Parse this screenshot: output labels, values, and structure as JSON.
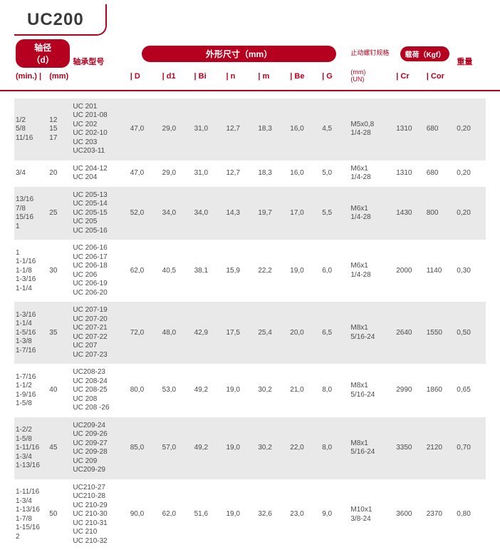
{
  "title": "UC200",
  "colors": {
    "accent": "#b5001f",
    "text": "#4a4a4a",
    "stripe": "#e9e9e9"
  },
  "header": {
    "shaft_pill": "轴径（d）",
    "dim_pill": "外形尺寸（mm）",
    "load_pill": "载荷（Kgf）",
    "bearing_no": "轴承型号",
    "screw_spec": "止动螺钉规格",
    "min": "(min.)",
    "mm": "(mm)",
    "mm2": "(mm)",
    "un": "(UN)",
    "D": "D",
    "d1": "d1",
    "Bi": "Bi",
    "n": "n",
    "m": "m",
    "Be": "Be",
    "G": "G",
    "Cr": "Cr",
    "Cor": "Cor",
    "weight": "重量"
  },
  "cols": {
    "w": [
      40,
      28,
      68,
      38,
      38,
      38,
      38,
      38,
      38,
      34,
      54,
      36,
      36,
      36
    ]
  },
  "rows": [
    {
      "min": "1/2\n5/8\n11/16",
      "mm": "12\n15\n17",
      "model": "UC 201\nUC 201-08\nUC 202\nUC 202-10\nUC 203\nUC203-11",
      "D": "47,0",
      "d1": "29,0",
      "Bi": "31,0",
      "n": "12,7",
      "m": "18,3",
      "Be": "16,0",
      "G": "4,5",
      "screw": "M5x0,8\n1/4-28",
      "Cr": "1310",
      "Cor": "680",
      "wt": "0,20"
    },
    {
      "min": "3/4",
      "mm": "20",
      "model": "UC 204-12\nUC 204",
      "D": "47,0",
      "d1": "29,0",
      "Bi": "31,0",
      "n": "12,7",
      "m": "18,3",
      "Be": "16,0",
      "G": "5,0",
      "screw": "M6x1\n1/4-28",
      "Cr": "1310",
      "Cor": "680",
      "wt": "0,20"
    },
    {
      "min": "13/16\n7/8\n15/16\n1",
      "mm": "25",
      "model": "UC 205-13\nUC 205-14\nUC 205-15\nUC 205\nUC 205-16",
      "D": "52,0",
      "d1": "34,0",
      "Bi": "34,0",
      "n": "14,3",
      "m": "19,7",
      "Be": "17,0",
      "G": "5,5",
      "screw": "M6x1\n1/4-28",
      "Cr": "1430",
      "Cor": "800",
      "wt": "0,20"
    },
    {
      "min": "1\n1-1/16\n1-1/8\n1-3/16\n1-1/4",
      "mm": "30",
      "model": "UC 206-16\nUC 206-17\nUC 206-18\nUC 206\nUC 206-19\nUC 206-20",
      "D": "62,0",
      "d1": "40,5",
      "Bi": "38,1",
      "n": "15,9",
      "m": "22,2",
      "Be": "19,0",
      "G": "6,0",
      "screw": "M6x1\n1/4-28",
      "Cr": "2000",
      "Cor": "1140",
      "wt": "0,30"
    },
    {
      "min": "1-3/16\n1-1/4\n1-5/16\n1-3/8\n1-7/16",
      "mm": "35",
      "model": "UC 207-19\nUC 207-20\nUC 207-21\nUC 207-22\nUC 207\nUC 207-23",
      "D": "72,0",
      "d1": "48,0",
      "Bi": "42,9",
      "n": "17,5",
      "m": "25,4",
      "Be": "20,0",
      "G": "6,5",
      "screw": "M8x1\n5/16-24",
      "Cr": "2640",
      "Cor": "1550",
      "wt": "0,50"
    },
    {
      "min": "1-7/16\n1-1/2\n1-9/16\n1-5/8",
      "mm": "40",
      "model": "UC208-23\nUC 208-24\nUC 208-25\nUC 208\nUC 208 -26",
      "D": "80,0",
      "d1": "53,0",
      "Bi": "49,2",
      "n": "19,0",
      "m": "30,2",
      "Be": "21,0",
      "G": "8,0",
      "screw": "M8x1\n5/16-24",
      "Cr": "2990",
      "Cor": "1860",
      "wt": "0,65"
    },
    {
      "min": "1-2/2\n1-5/8\n1-11/16\n1-3/4\n1-13/16",
      "mm": "45",
      "model": "UC209-24\nUC 209-26\nUC 209-27\nUC 209-28\nUC 209\nUC209-29",
      "D": "85,0",
      "d1": "57,0",
      "Bi": "49,2",
      "n": "19,0",
      "m": "30,2",
      "Be": "22,0",
      "G": "8,0",
      "screw": "M8x1\n5/16-24",
      "Cr": "3350",
      "Cor": "2120",
      "wt": "0,70"
    },
    {
      "min": "1-11/16\n1-3/4\n1-13/16\n1-7/8\n1-15/16\n2",
      "mm": "50",
      "model": "UC210-27\nUC210-28\nUC 210-29\nUC 210-30\nUC 210-31\nUC 210\nUC 210-32",
      "D": "90,0",
      "d1": "62,0",
      "Bi": "51,6",
      "n": "19,0",
      "m": "32,6",
      "Be": "23,0",
      "G": "9,0",
      "screw": "M10x1\n3/8-24",
      "Cr": "3600",
      "Cor": "2370",
      "wt": "0,80"
    }
  ]
}
